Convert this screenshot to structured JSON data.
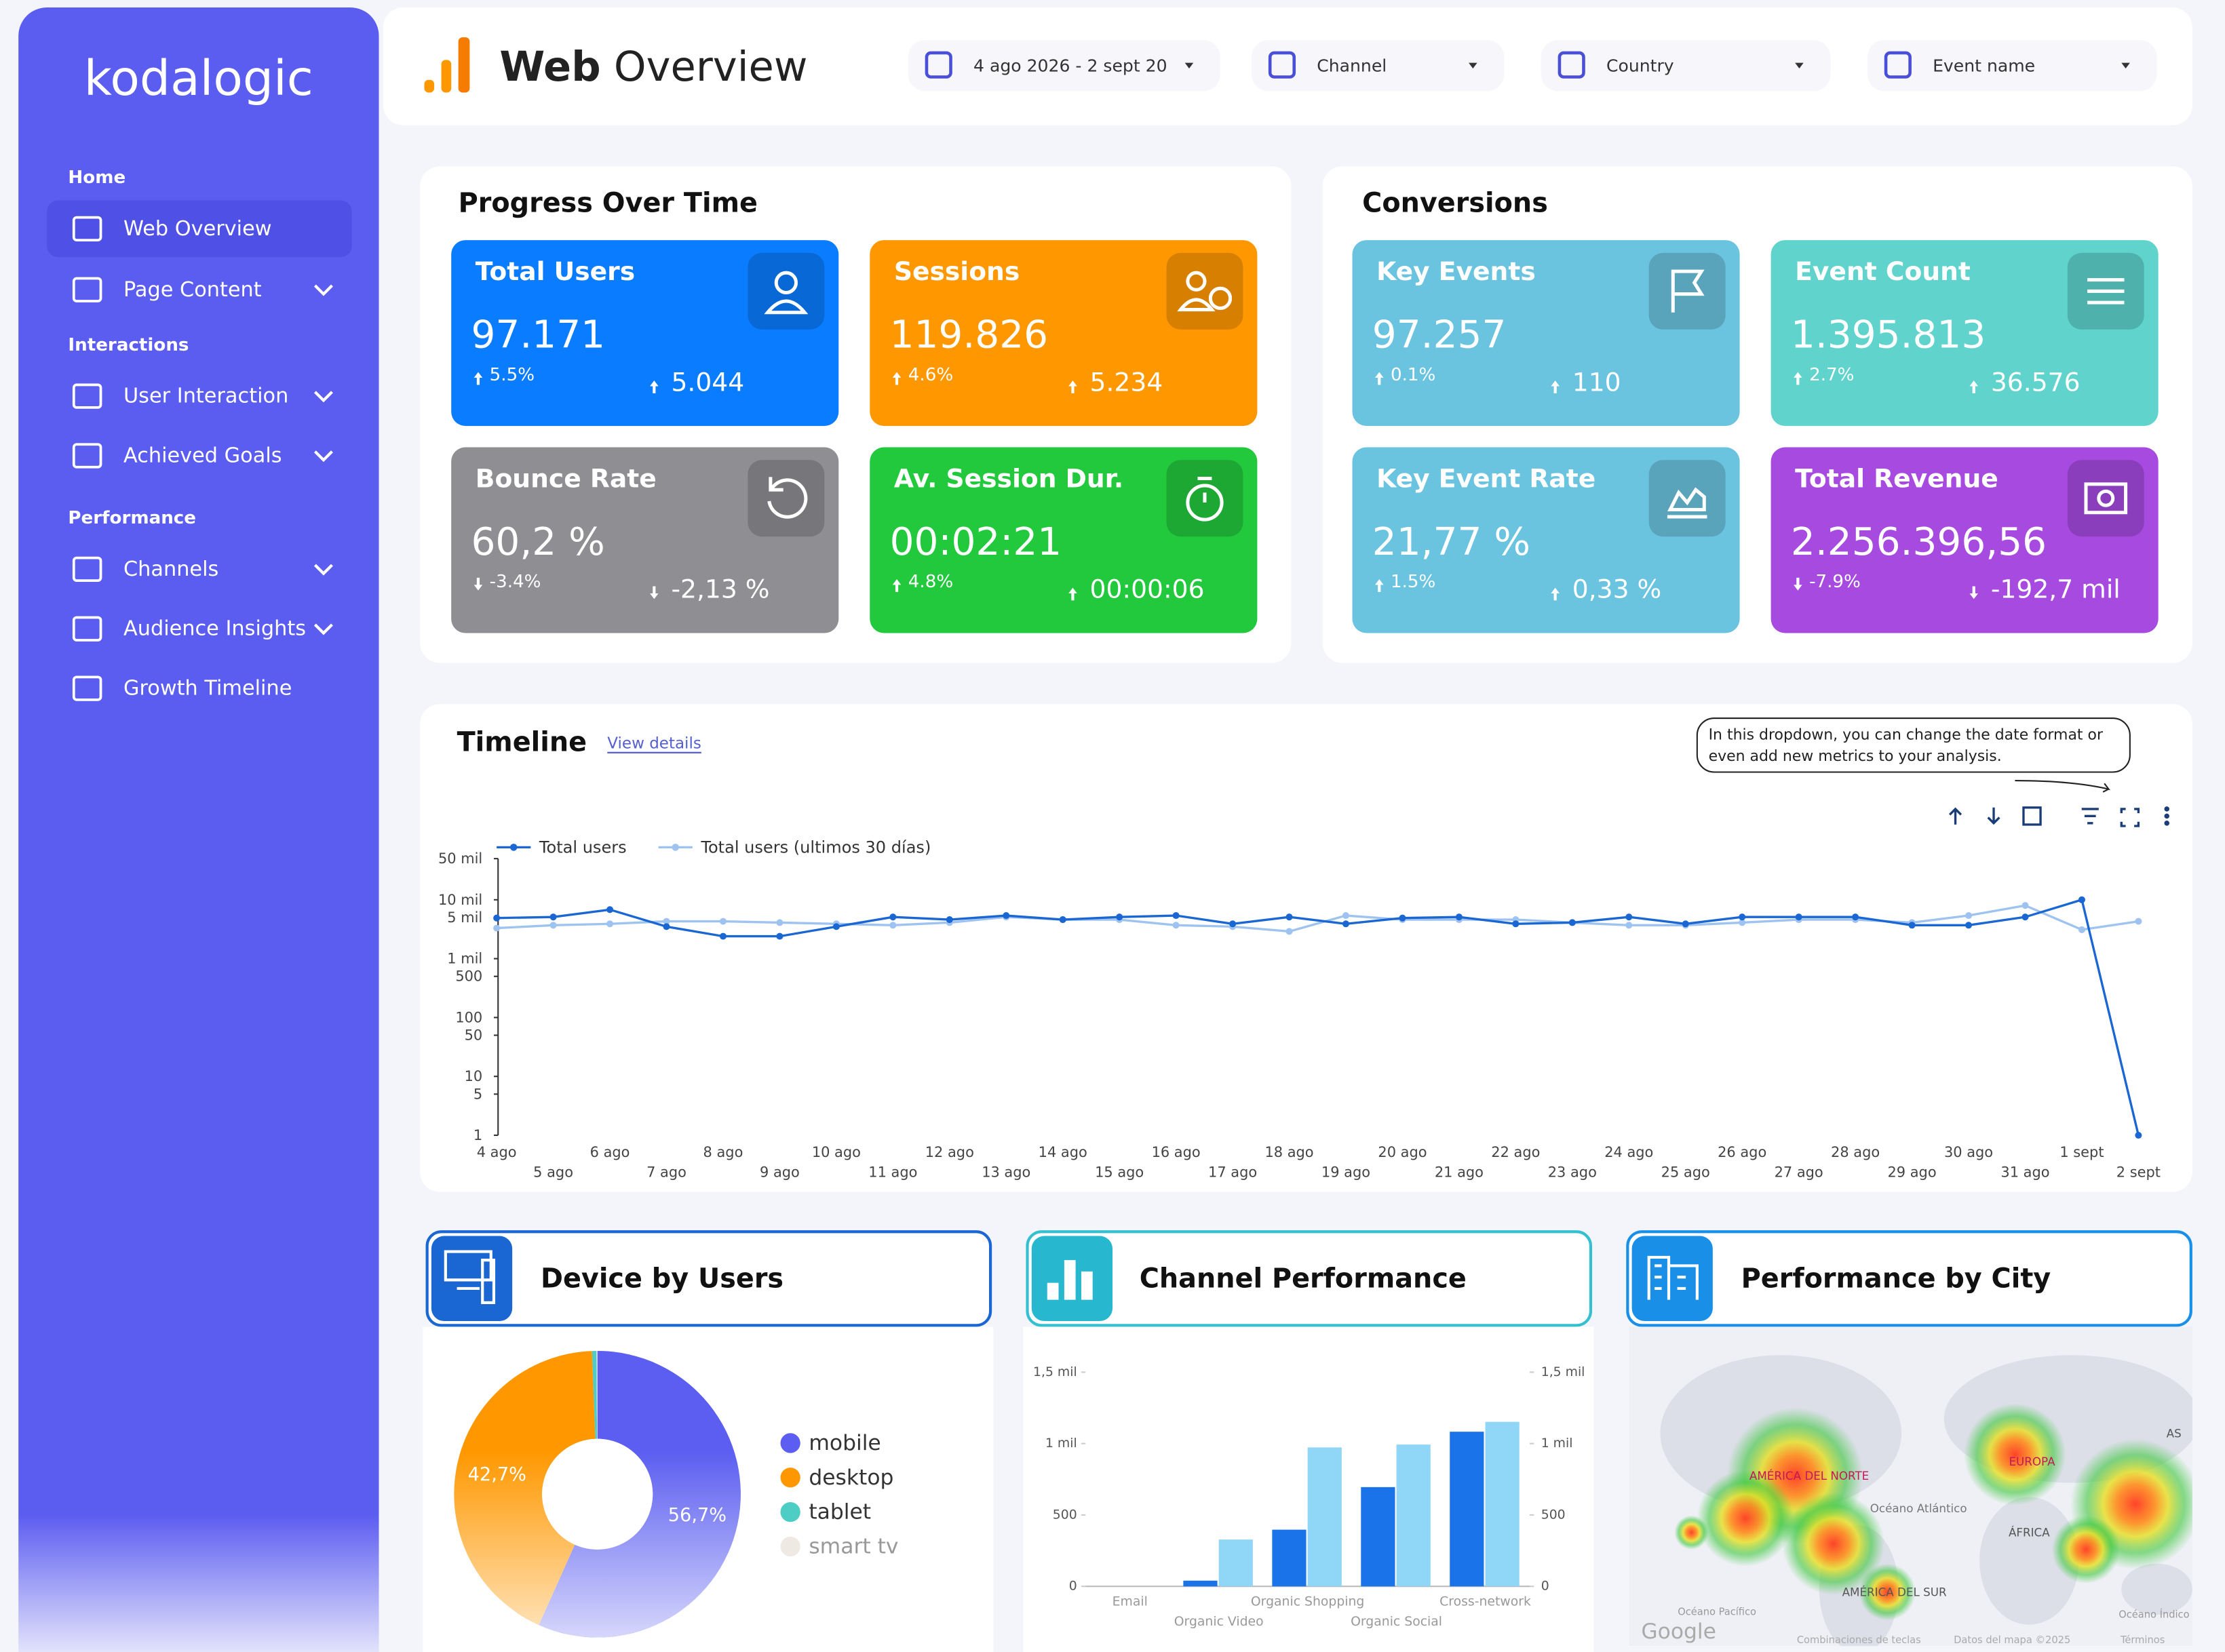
{
  "sidebar": {
    "logo": "kodalogic",
    "groups": [
      {
        "heading": "Home",
        "items": [
          "Web Overview",
          "Page Content"
        ]
      },
      {
        "heading": "Interactions",
        "items": [
          "User Interaction",
          "Achieved Goals"
        ]
      },
      {
        "heading": "Performance",
        "items": [
          "Channels",
          "Audience Insights",
          "Growth Timeline"
        ]
      }
    ]
  },
  "header": {
    "title_bold": "Web",
    "title_rest": "Overview",
    "filters": [
      "4 ago 2026 - 2 sept 20",
      "Channel",
      "Country",
      "Event name"
    ]
  },
  "progress": {
    "title": "Progress Over Time",
    "cards": [
      {
        "title": "Total Users",
        "value": "97.171",
        "change": "5.5%",
        "delta": "5.044",
        "color": "#0a7cff"
      },
      {
        "title": "Sessions",
        "value": "119.826",
        "change": "4.6%",
        "delta": "5.234",
        "color": "#ff9800"
      },
      {
        "title": "Bounce Rate",
        "value": "60,2 %",
        "change": "-3.4%",
        "delta": "-2,13 %",
        "color": "#8e8e93"
      },
      {
        "title": "Av. Session Dur.",
        "value": "00:02:21",
        "change": "4.8%",
        "delta": "00:00:06",
        "color": "#22c93c"
      }
    ]
  },
  "conversions": {
    "title": "Conversions",
    "cards": [
      {
        "title": "Key Events",
        "value": "97.257",
        "change": "0.1%",
        "delta": "110",
        "color": "#6ac3df"
      },
      {
        "title": "Event Count",
        "value": "1.395.813",
        "change": "2.7%",
        "delta": "36.576",
        "color": "#5fd3cc"
      },
      {
        "title": "Key Event Rate",
        "value": "21,77 %",
        "change": "1.5%",
        "delta": "0,33 %",
        "color": "#6ac3df"
      },
      {
        "title": "Total Revenue",
        "value": "2.256.396,56",
        "change": "-7.9%",
        "delta": "-192,7 mil",
        "color": "#a64ae0"
      }
    ]
  },
  "chart_data": [
    {
      "type": "line",
      "title": "Timeline",
      "link": "View details",
      "note": "In this dropdown, you can change the date format or even add new metrics to your analysis.",
      "categories": [
        "4 ago",
        "5 ago",
        "6 ago",
        "7 ago",
        "8 ago",
        "9 ago",
        "10 ago",
        "11 ago",
        "12 ago",
        "13 ago",
        "14 ago",
        "15 ago",
        "16 ago",
        "17 ago",
        "18 ago",
        "19 ago",
        "20 ago",
        "21 ago",
        "22 ago",
        "23 ago",
        "24 ago",
        "25 ago",
        "26 ago",
        "27 ago",
        "28 ago",
        "29 ago",
        "30 ago",
        "31 ago",
        "1 sept",
        "2 sept"
      ],
      "series": [
        {
          "name": "Total users",
          "color": "#1a66d2",
          "values": [
            4900,
            5100,
            6800,
            3500,
            2400,
            2400,
            3500,
            5100,
            4600,
            5400,
            4600,
            5100,
            5400,
            3900,
            5100,
            3900,
            4900,
            5100,
            3900,
            4100,
            5100,
            3900,
            5100,
            5100,
            5100,
            3700,
            3700,
            5100,
            10000,
            1
          ]
        },
        {
          "name": "Total users (ultimos 30 días)",
          "color": "#9ec3f0",
          "values": [
            3300,
            3700,
            3900,
            4300,
            4300,
            4100,
            3900,
            3700,
            4100,
            5100,
            4600,
            4600,
            3700,
            3500,
            2900,
            5400,
            4600,
            4600,
            4600,
            4100,
            3700,
            3700,
            4100,
            4600,
            4600,
            4100,
            5400,
            8000,
            3100,
            4300
          ]
        }
      ],
      "log_scale": true,
      "ylim": [
        1,
        50000
      ],
      "yticks": [
        1,
        5,
        10,
        50,
        100,
        500,
        {
          "value": 1000,
          "label": "1 mil"
        },
        {
          "value": 5000,
          "label": "5 mil"
        },
        {
          "value": 10000,
          "label": "10 mil"
        },
        {
          "value": 50000,
          "label": "50 mil"
        }
      ]
    },
    {
      "type": "pie",
      "title": "Device by Users",
      "categories": [
        "mobile",
        "desktop",
        "tablet",
        "smart tv"
      ],
      "values": [
        56.7,
        42.7,
        0.5,
        0.1
      ],
      "value_labels": [
        "56,7%",
        "42,7%",
        null,
        null
      ],
      "colors": [
        "#5b5ef0",
        "#ff9800",
        "#4ecdc4",
        "#efe9e4"
      ]
    },
    {
      "type": "bar",
      "title": "Channel Performance",
      "categories": [
        "Email",
        "Organic Video",
        "Organic Shopping",
        "Organic Social",
        "Cross-network"
      ],
      "series": [
        {
          "color": "#1a73e8",
          "values": [
            0,
            40,
            397,
            695,
            1083
          ]
        },
        {
          "color": "#8fd6f7",
          "values": [
            0,
            328,
            973,
            993,
            1152
          ]
        }
      ],
      "ylim": [
        0,
        1500
      ],
      "yticks": [
        0,
        500,
        {
          "value": 1000,
          "label": "1 mil"
        },
        {
          "value": 1500,
          "label": "1,5 mil"
        }
      ],
      "y2lim": [
        0,
        1500
      ],
      "y2ticks": [
        0,
        500,
        {
          "value": 1000,
          "label": "1 mil"
        },
        {
          "value": 1500,
          "label": "1,5 mil"
        }
      ]
    }
  ],
  "map": {
    "title": "Performance by City",
    "labels": [
      "AMÉRICA DEL NORTE",
      "Océano Atlántico",
      "EUROPA",
      "ÁFRICA",
      "AMÉRICA DEL SUR",
      "AS",
      "Océano Pacífico",
      "Océano Índico",
      "Google",
      "Combinaciones de teclas",
      "Datos del mapa ©2025",
      "Términos"
    ]
  }
}
